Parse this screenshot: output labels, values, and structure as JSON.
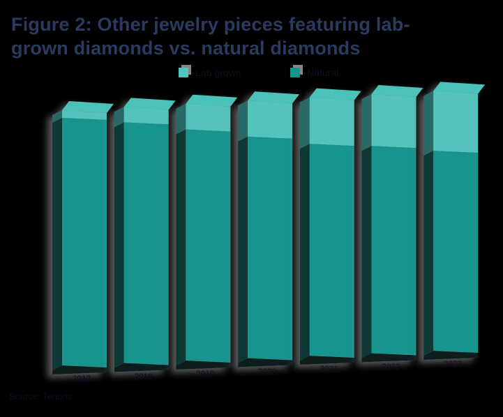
{
  "page": {
    "background_color": "#000000",
    "title": "Figure 2: Other jewelry pieces featuring lab-grown diamonds vs. natural diamonds",
    "caption": "Source: Tenoris"
  },
  "colors": {
    "title_text": "#2b3b60",
    "legend_text": "#0b1120",
    "axis_text": "#0a101e",
    "caption_text": "#0a101e",
    "bar_light_front": "#53c3bb",
    "bar_light_top": "#4cc2b9",
    "bar_light_side": "#2a6a66",
    "bar_dark_front": "#13948d",
    "bar_dark_side": "#0d3835",
    "bar_bottom": "#0b1f1e",
    "shadow": "#8a8a8a"
  },
  "chart_data": {
    "type": "bar",
    "subtype": "stacked-100-percent-3d-columns",
    "title": "Figure 2: Other jewelry pieces featuring lab-grown diamonds vs. natural diamonds",
    "categories": [
      "2017",
      "2018",
      "2019",
      "2020",
      "2021",
      "2022",
      "2023"
    ],
    "series": [
      {
        "name": "Lab grown",
        "color": "#53c3bb",
        "values": [
          3,
          6,
          10,
          14,
          18,
          20,
          23
        ]
      },
      {
        "name": "Natural",
        "color": "#13948d",
        "values": [
          97,
          94,
          90,
          86,
          82,
          80,
          77
        ]
      }
    ],
    "unit": "%",
    "ylim": [
      0,
      100
    ],
    "xlabel": "",
    "ylabel": "",
    "grid": false,
    "y_axis_visible": false,
    "legend_position": "top-center",
    "caption": "Source: Tenoris"
  }
}
